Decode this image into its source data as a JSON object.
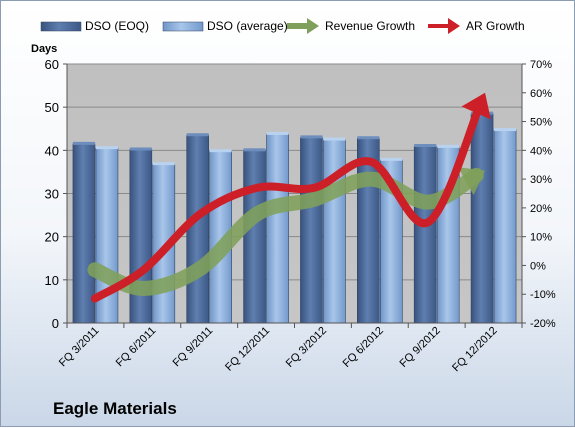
{
  "chart_data": {
    "type": "bar",
    "title": "Eagle Materials",
    "ylabel": "Days",
    "ylim": [
      0,
      60
    ],
    "y_ticks": [
      "0",
      "10",
      "20",
      "30",
      "40",
      "50",
      "60"
    ],
    "y2lim": [
      -20,
      70
    ],
    "y2_ticks": [
      "-20%",
      "-10%",
      "0%",
      "10%",
      "20%",
      "30%",
      "40%",
      "50%",
      "60%",
      "70%"
    ],
    "categories": [
      "FQ 3/2011",
      "FQ 6/2011",
      "FQ 9/2011",
      "FQ 12/2011",
      "FQ 3/2012",
      "FQ 6/2012",
      "FQ 9/2012",
      "FQ 12/2012"
    ],
    "legend_position": "top",
    "grid": true,
    "series": [
      {
        "name": "DSO (EOQ)",
        "kind": "bar",
        "axis": "left",
        "color": "#4a6a9b",
        "values": [
          41.5,
          40.2,
          43.5,
          40.0,
          43.0,
          42.8,
          41.0,
          48.5
        ]
      },
      {
        "name": "DSO (average)",
        "kind": "bar",
        "axis": "left",
        "color": "#8fb2df",
        "values": [
          40.5,
          36.8,
          39.8,
          43.8,
          42.5,
          37.8,
          40.8,
          44.7
        ]
      },
      {
        "name": "Revenue Growth",
        "kind": "line",
        "axis": "right",
        "color": "#7fa05a",
        "values": [
          -1.5,
          -8,
          -1,
          18,
          23,
          30,
          22,
          33
        ]
      },
      {
        "name": "AR Growth",
        "kind": "line",
        "axis": "right",
        "color": "#cc1f27",
        "values": [
          -11.5,
          -1.5,
          18,
          27,
          27,
          36,
          15,
          60
        ]
      }
    ]
  }
}
